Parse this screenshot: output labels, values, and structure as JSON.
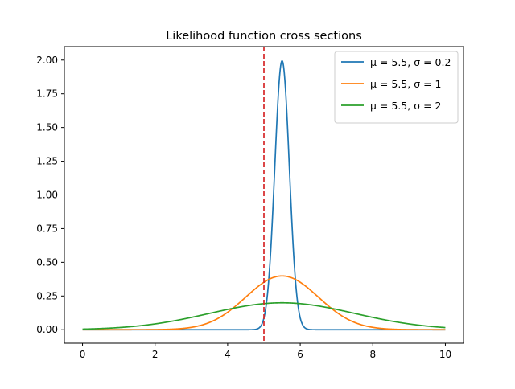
{
  "chart_data": {
    "type": "line",
    "title": "Likelihood function cross sections",
    "xlabel": "",
    "ylabel": "",
    "xlim": [
      -0.5,
      10.5
    ],
    "ylim": [
      -0.1,
      2.1
    ],
    "x_ticks": [
      0,
      2,
      4,
      6,
      8,
      10
    ],
    "x_tick_labels": [
      "0",
      "2",
      "4",
      "6",
      "8",
      "10"
    ],
    "y_ticks": [
      0.0,
      0.25,
      0.5,
      0.75,
      1.0,
      1.25,
      1.5,
      1.75,
      2.0
    ],
    "y_tick_labels": [
      "0.00",
      "0.25",
      "0.50",
      "0.75",
      "1.00",
      "1.25",
      "1.50",
      "1.75",
      "2.00"
    ],
    "grid": false,
    "legend_position": "top-right",
    "x_range": [
      0,
      10
    ],
    "series": [
      {
        "name": "μ = 5.5, σ = 0.2",
        "distribution": "normal",
        "mu": 5.5,
        "sigma": 0.2,
        "color": "#1f77b4"
      },
      {
        "name": "μ = 5.5, σ = 1",
        "distribution": "normal",
        "mu": 5.5,
        "sigma": 1,
        "color": "#ff7f0e"
      },
      {
        "name": "μ = 5.5, σ = 2",
        "distribution": "normal",
        "mu": 5.5,
        "sigma": 2,
        "color": "#2ca02c"
      }
    ],
    "annotations": [
      {
        "type": "vline",
        "x": 5,
        "color": "#d62728",
        "style": "dashed"
      }
    ]
  }
}
